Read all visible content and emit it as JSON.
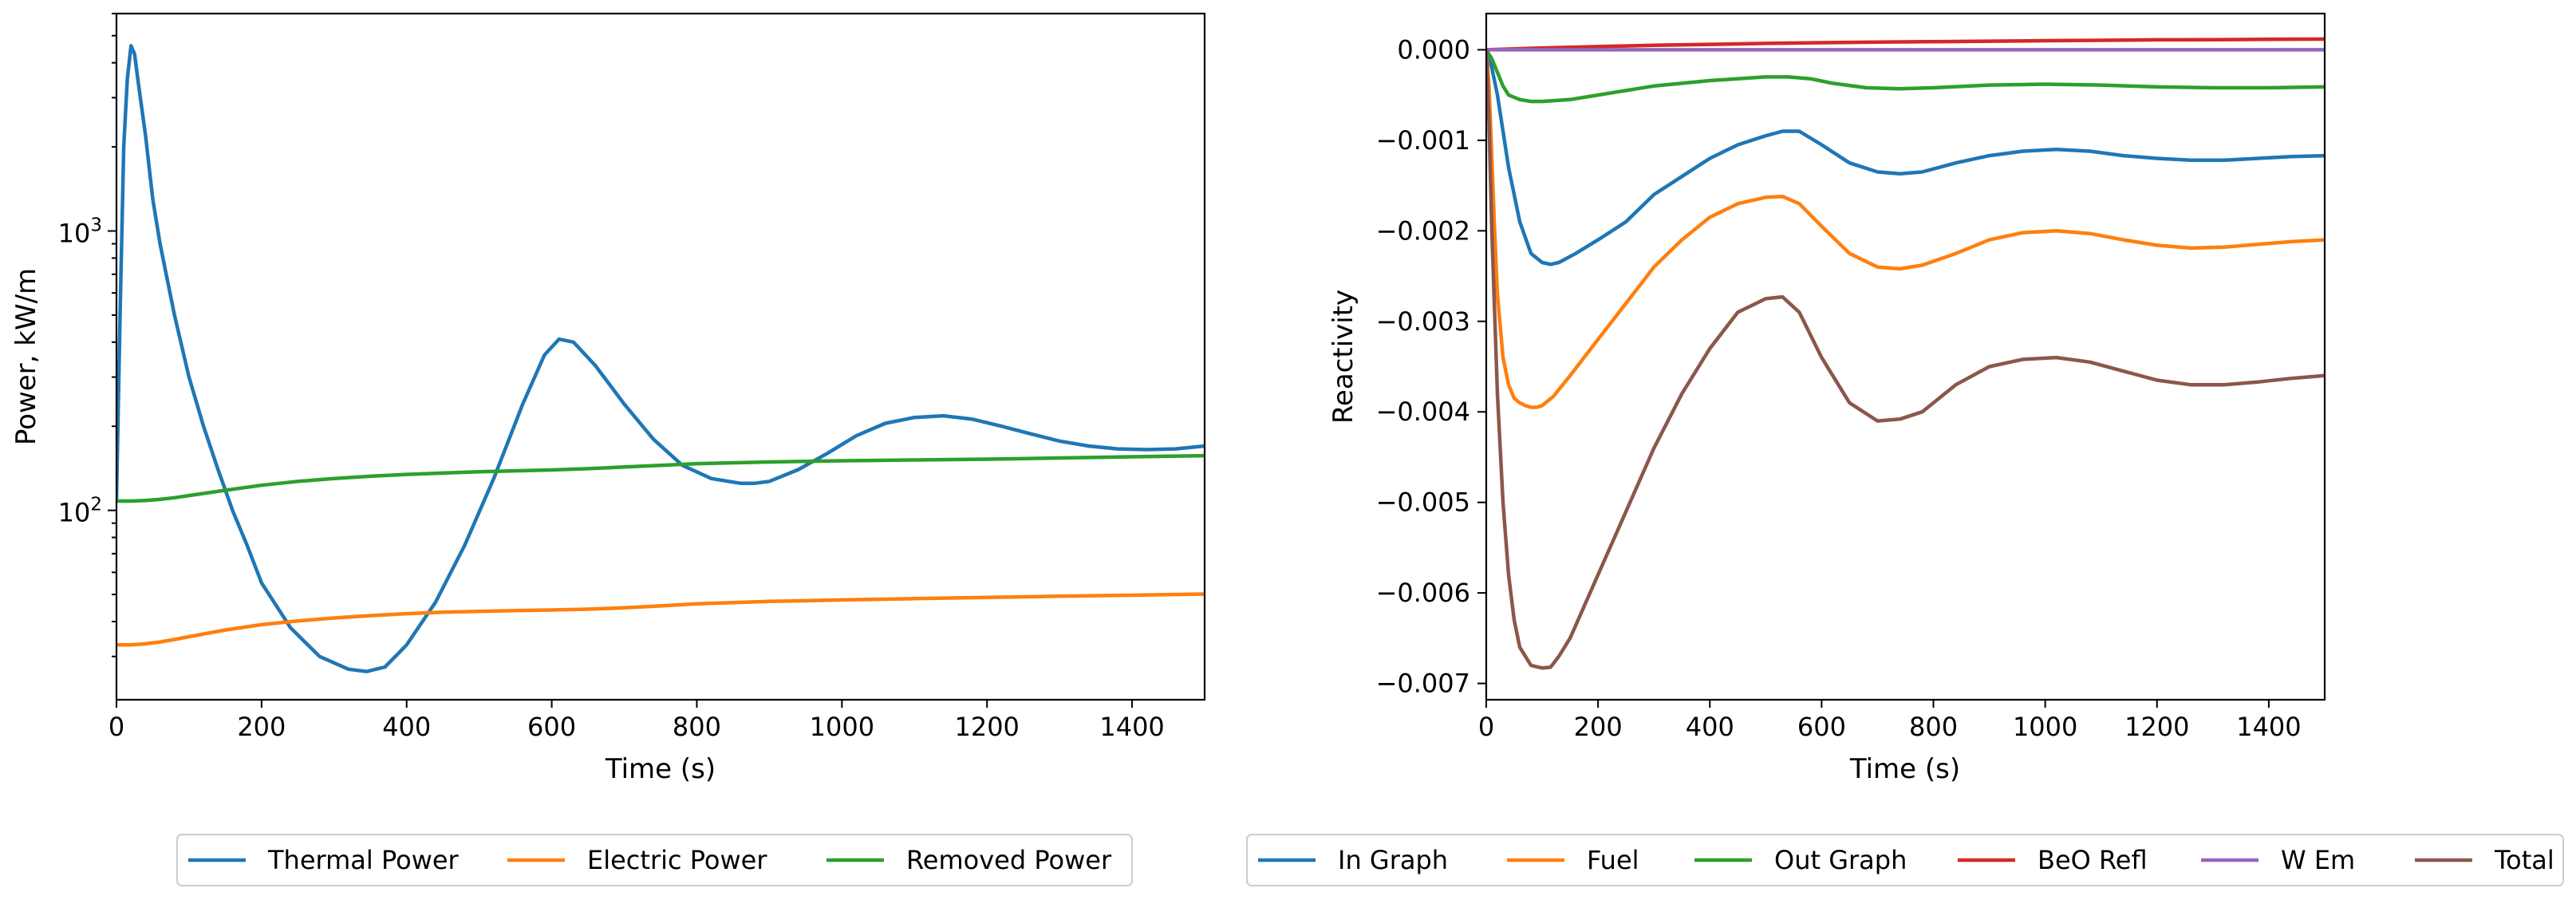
{
  "chart_data": [
    {
      "type": "line",
      "title": "",
      "xlabel": "Time (s)",
      "ylabel": "Power, kW/m",
      "yscale": "log",
      "xlim": [
        0,
        1500
      ],
      "ylim": [
        21,
        6000
      ],
      "xticks": [
        0,
        200,
        400,
        600,
        800,
        1000,
        1200,
        1400
      ],
      "yticks": [
        {
          "value": 100,
          "label": "10",
          "exp": "2"
        },
        {
          "value": 1000,
          "label": "10",
          "exp": "3"
        }
      ],
      "legend_position": "bottom-center",
      "series": [
        {
          "name": "Thermal Power",
          "color": "#1f77b4",
          "x": [
            0,
            5,
            10,
            15,
            20,
            25,
            30,
            40,
            50,
            60,
            80,
            100,
            120,
            140,
            160,
            180,
            200,
            240,
            280,
            320,
            345,
            370,
            400,
            440,
            480,
            520,
            560,
            590,
            610,
            630,
            660,
            700,
            740,
            780,
            820,
            860,
            880,
            900,
            940,
            980,
            1020,
            1060,
            1100,
            1140,
            1180,
            1220,
            1260,
            1300,
            1340,
            1380,
            1420,
            1460,
            1500
          ],
          "y": [
            110,
            500,
            2000,
            3500,
            4600,
            4300,
            3400,
            2200,
            1300,
            900,
            500,
            300,
            200,
            140,
            100,
            75,
            55,
            38,
            30,
            27,
            26.5,
            27.5,
            33,
            47,
            75,
            130,
            240,
            360,
            410,
            400,
            330,
            240,
            180,
            145,
            130,
            125,
            125,
            127,
            140,
            160,
            185,
            205,
            215,
            218,
            212,
            200,
            188,
            177,
            170,
            166,
            165,
            166,
            170
          ]
        },
        {
          "name": "Electric Power",
          "color": "#ff7f0e",
          "x": [
            0,
            20,
            40,
            60,
            80,
            100,
            150,
            200,
            250,
            300,
            350,
            400,
            450,
            500,
            550,
            600,
            650,
            700,
            750,
            800,
            900,
            1000,
            1100,
            1200,
            1300,
            1400,
            1500
          ],
          "y": [
            33,
            33,
            33.3,
            33.8,
            34.5,
            35.3,
            37.3,
            39,
            40.2,
            41.2,
            42,
            42.7,
            43.2,
            43.5,
            43.8,
            44,
            44.3,
            44.8,
            45.5,
            46.3,
            47.2,
            47.8,
            48.3,
            48.8,
            49.3,
            49.7,
            50.2
          ]
        },
        {
          "name": "Removed Power",
          "color": "#2ca02c",
          "x": [
            0,
            20,
            40,
            60,
            80,
            100,
            150,
            200,
            250,
            300,
            350,
            400,
            450,
            500,
            550,
            600,
            650,
            700,
            750,
            800,
            900,
            1000,
            1100,
            1200,
            1300,
            1400,
            1500
          ],
          "y": [
            108,
            108,
            108.5,
            109.5,
            111,
            113,
            118,
            123,
            127,
            130,
            132.5,
            134.5,
            136,
            137.5,
            138.5,
            139.5,
            141,
            143,
            145,
            147,
            149,
            150.5,
            151.5,
            152.5,
            154,
            155.5,
            157
          ]
        }
      ]
    },
    {
      "type": "line",
      "title": "",
      "xlabel": "Time (s)",
      "ylabel": "Reactivity",
      "xlim": [
        0,
        1500
      ],
      "ylim": [
        -0.00718,
        0.0004
      ],
      "xticks": [
        0,
        200,
        400,
        600,
        800,
        1000,
        1200,
        1400
      ],
      "yticks": [
        0,
        -0.001,
        -0.002,
        -0.003,
        -0.004,
        -0.005,
        -0.006,
        -0.007
      ],
      "ytick_labels": [
        "0.000",
        "−0.001",
        "−0.002",
        "−0.003",
        "−0.004",
        "−0.005",
        "−0.006",
        "−0.007"
      ],
      "legend_position": "bottom-center",
      "series": [
        {
          "name": "In Graph",
          "color": "#1f77b4",
          "x": [
            0,
            10,
            20,
            30,
            40,
            60,
            80,
            100,
            115,
            130,
            160,
            200,
            250,
            300,
            350,
            400,
            450,
            500,
            530,
            560,
            600,
            650,
            700,
            740,
            780,
            840,
            900,
            960,
            1020,
            1080,
            1140,
            1200,
            1260,
            1320,
            1380,
            1440,
            1500
          ],
          "y": [
            0,
            -0.0002,
            -0.0005,
            -0.0009,
            -0.0013,
            -0.0019,
            -0.00225,
            -0.00235,
            -0.00237,
            -0.00235,
            -0.00225,
            -0.0021,
            -0.0019,
            -0.0016,
            -0.0014,
            -0.0012,
            -0.00105,
            -0.00095,
            -0.0009,
            -0.0009,
            -0.00105,
            -0.00125,
            -0.00135,
            -0.00137,
            -0.00135,
            -0.00125,
            -0.00117,
            -0.00112,
            -0.0011,
            -0.00112,
            -0.00117,
            -0.0012,
            -0.00122,
            -0.00122,
            -0.0012,
            -0.00118,
            -0.00117
          ]
        },
        {
          "name": "Fuel",
          "color": "#ff7f0e",
          "x": [
            0,
            5,
            10,
            15,
            20,
            30,
            40,
            50,
            60,
            70,
            80,
            90,
            100,
            120,
            150,
            200,
            250,
            300,
            350,
            400,
            450,
            500,
            530,
            560,
            600,
            650,
            700,
            740,
            780,
            840,
            900,
            960,
            1020,
            1080,
            1140,
            1200,
            1260,
            1320,
            1380,
            1440,
            1500
          ],
          "y": [
            0,
            -0.0004,
            -0.0012,
            -0.002,
            -0.0027,
            -0.0034,
            -0.0037,
            -0.00385,
            -0.0039,
            -0.00393,
            -0.00395,
            -0.00395,
            -0.00393,
            -0.00383,
            -0.0036,
            -0.0032,
            -0.0028,
            -0.0024,
            -0.0021,
            -0.00185,
            -0.0017,
            -0.00163,
            -0.00162,
            -0.0017,
            -0.00195,
            -0.00225,
            -0.0024,
            -0.00242,
            -0.00238,
            -0.00225,
            -0.0021,
            -0.00202,
            -0.002,
            -0.00203,
            -0.0021,
            -0.00216,
            -0.00219,
            -0.00218,
            -0.00215,
            -0.00212,
            -0.0021
          ]
        },
        {
          "name": "Out Graph",
          "color": "#2ca02c",
          "x": [
            0,
            10,
            20,
            30,
            40,
            60,
            80,
            100,
            150,
            200,
            300,
            400,
            500,
            540,
            580,
            620,
            680,
            740,
            800,
            900,
            1000,
            1100,
            1200,
            1300,
            1400,
            1500
          ],
          "y": [
            0,
            -0.0001,
            -0.00025,
            -0.0004,
            -0.0005,
            -0.00055,
            -0.00057,
            -0.00057,
            -0.00055,
            -0.0005,
            -0.0004,
            -0.00034,
            -0.0003,
            -0.0003,
            -0.00032,
            -0.00037,
            -0.00042,
            -0.00043,
            -0.00042,
            -0.00039,
            -0.00038,
            -0.00039,
            -0.00041,
            -0.00042,
            -0.00042,
            -0.00041
          ]
        },
        {
          "name": "BeO Refl",
          "color": "#d62728",
          "x": [
            0,
            100,
            200,
            300,
            400,
            500,
            600,
            700,
            800,
            900,
            1000,
            1100,
            1200,
            1300,
            1400,
            1500
          ],
          "y": [
            0,
            2e-05,
            3.5e-05,
            5e-05,
            6e-05,
            7e-05,
            7.8e-05,
            8.5e-05,
            9e-05,
            9.5e-05,
            0.0001,
            0.000105,
            0.00011,
            0.000112,
            0.000115,
            0.000118
          ]
        },
        {
          "name": "W Em",
          "color": "#9467bd",
          "x": [
            0,
            500,
            1000,
            1500
          ],
          "y": [
            0,
            0,
            0,
            0
          ]
        },
        {
          "name": "Total",
          "color": "#8c564b",
          "x": [
            0,
            5,
            10,
            20,
            30,
            40,
            50,
            60,
            80,
            100,
            115,
            130,
            150,
            200,
            250,
            300,
            350,
            400,
            450,
            500,
            530,
            560,
            600,
            650,
            700,
            740,
            780,
            840,
            900,
            960,
            1020,
            1080,
            1140,
            1200,
            1260,
            1320,
            1380,
            1440,
            1500
          ],
          "y": [
            0,
            -0.0008,
            -0.002,
            -0.0038,
            -0.005,
            -0.0058,
            -0.0063,
            -0.0066,
            -0.0068,
            -0.00683,
            -0.00682,
            -0.0067,
            -0.0065,
            -0.0058,
            -0.0051,
            -0.0044,
            -0.0038,
            -0.0033,
            -0.0029,
            -0.00275,
            -0.00273,
            -0.0029,
            -0.0034,
            -0.0039,
            -0.0041,
            -0.00408,
            -0.004,
            -0.0037,
            -0.0035,
            -0.00342,
            -0.0034,
            -0.00345,
            -0.00355,
            -0.00365,
            -0.0037,
            -0.0037,
            -0.00367,
            -0.00363,
            -0.0036
          ]
        }
      ]
    }
  ]
}
